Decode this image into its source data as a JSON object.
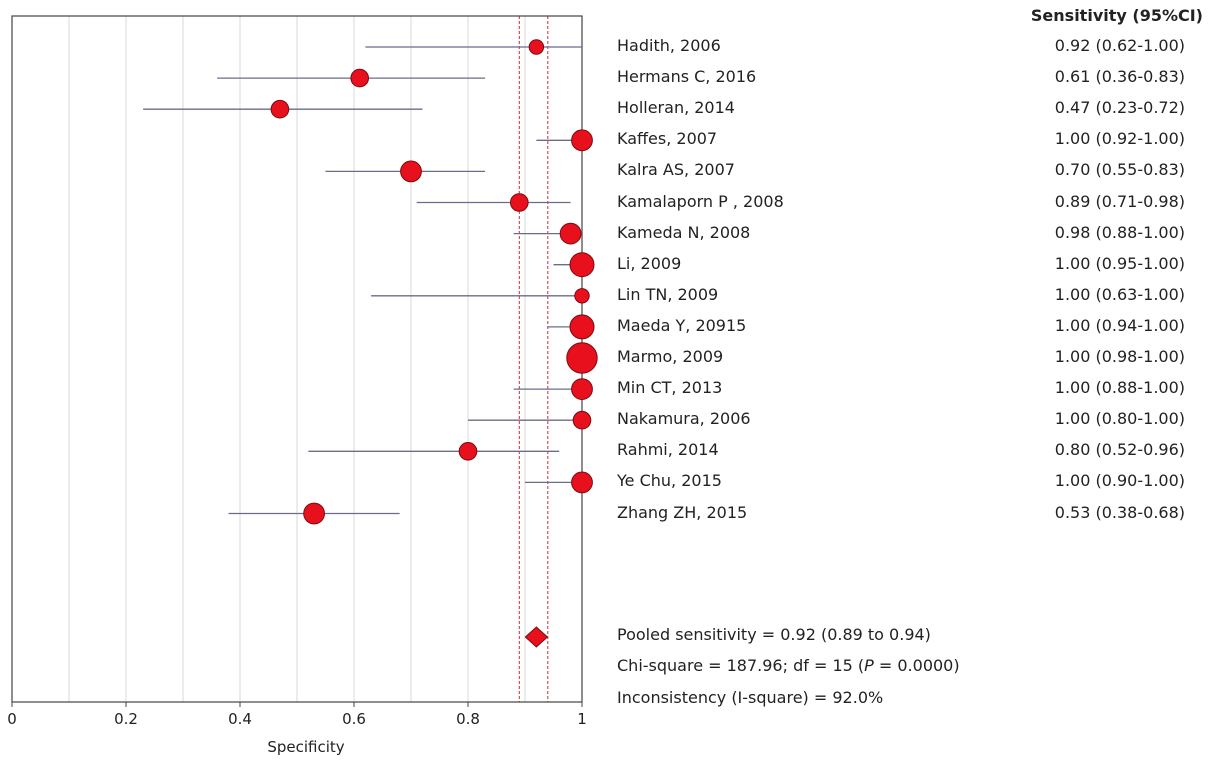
{
  "chart_data": {
    "type": "forest",
    "xlabel": "Specificity",
    "xlim": [
      0,
      1
    ],
    "xticks": [
      "0",
      "0.2",
      "0.4",
      "0.6",
      "0.8",
      "1"
    ],
    "column_header": "Sensitivity (95%CI)",
    "studies": [
      {
        "label": "Hadith, 2006",
        "estimate": 0.92,
        "lower": 0.62,
        "upper": 1.0,
        "ci_text": "0.92 (0.62-1.00)"
      },
      {
        "label": "Hermans C, 2016",
        "estimate": 0.61,
        "lower": 0.36,
        "upper": 0.83,
        "ci_text": "0.61 (0.36-0.83)"
      },
      {
        "label": "Holleran, 2014",
        "estimate": 0.47,
        "lower": 0.23,
        "upper": 0.72,
        "ci_text": "0.47 (0.23-0.72)"
      },
      {
        "label": "Kaffes, 2007",
        "estimate": 1.0,
        "lower": 0.92,
        "upper": 1.0,
        "ci_text": "1.00 (0.92-1.00)"
      },
      {
        "label": "Kalra AS, 2007",
        "estimate": 0.7,
        "lower": 0.55,
        "upper": 0.83,
        "ci_text": "0.70 (0.55-0.83)"
      },
      {
        "label": "Kamalaporn P , 2008",
        "estimate": 0.89,
        "lower": 0.71,
        "upper": 0.98,
        "ci_text": "0.89 (0.71-0.98)"
      },
      {
        "label": "Kameda N, 2008",
        "estimate": 0.98,
        "lower": 0.88,
        "upper": 1.0,
        "ci_text": "0.98 (0.88-1.00)"
      },
      {
        "label": "Li, 2009",
        "estimate": 1.0,
        "lower": 0.95,
        "upper": 1.0,
        "ci_text": "1.00 (0.95-1.00)"
      },
      {
        "label": "Lin TN, 2009",
        "estimate": 1.0,
        "lower": 0.63,
        "upper": 1.0,
        "ci_text": "1.00 (0.63-1.00)"
      },
      {
        "label": "Maeda Y, 20915",
        "estimate": 1.0,
        "lower": 0.94,
        "upper": 1.0,
        "ci_text": "1.00 (0.94-1.00)"
      },
      {
        "label": "Marmo, 2009",
        "estimate": 1.0,
        "lower": 0.98,
        "upper": 1.0,
        "ci_text": "1.00 (0.98-1.00)"
      },
      {
        "label": "Min CT, 2013",
        "estimate": 1.0,
        "lower": 0.88,
        "upper": 1.0,
        "ci_text": "1.00 (0.88-1.00)"
      },
      {
        "label": "Nakamura, 2006",
        "estimate": 1.0,
        "lower": 0.8,
        "upper": 1.0,
        "ci_text": "1.00 (0.80-1.00)"
      },
      {
        "label": "Rahmi, 2014",
        "estimate": 0.8,
        "lower": 0.52,
        "upper": 0.96,
        "ci_text": "0.80 (0.52-0.96)"
      },
      {
        "label": "Ye Chu, 2015",
        "estimate": 1.0,
        "lower": 0.9,
        "upper": 1.0,
        "ci_text": "1.00 (0.90-1.00)"
      },
      {
        "label": "Zhang ZH, 2015",
        "estimate": 0.53,
        "lower": 0.38,
        "upper": 0.68,
        "ci_text": "0.53 (0.38-0.68)"
      }
    ],
    "marker_weights": [
      2,
      3,
      3,
      4,
      4,
      3,
      4,
      5,
      2,
      5,
      7,
      4,
      3,
      3,
      4,
      4
    ],
    "pooled": {
      "estimate": 0.92,
      "lower": 0.89,
      "upper": 0.94
    },
    "stats": {
      "pooled_text": "Pooled sensitivity = 0.92 (0.89 to 0.94)",
      "chi_prefix": "Chi-square = 187.96; df = 15 (",
      "chi_p_symbol": "P",
      "chi_suffix": " = 0.0000)",
      "inconsistency_text": "Inconsistency (I-square) = 92.0%"
    },
    "grid": true,
    "colors": {
      "marker": "#e8101c",
      "marker_edge": "#7a0a10",
      "ci_line": "#6b6b8a",
      "pooled_line": "#c0303a",
      "grid": "#d8d8d8"
    }
  }
}
